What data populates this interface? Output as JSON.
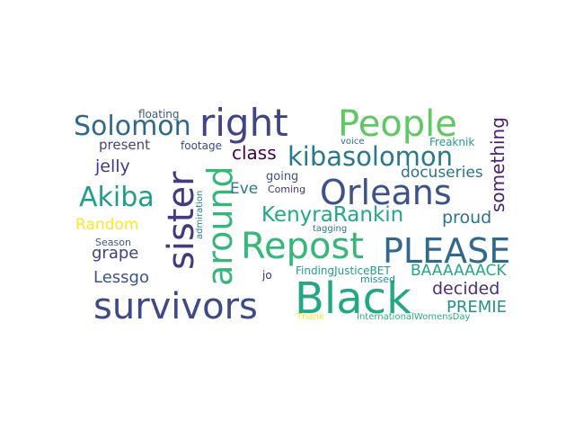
{
  "words": [
    {
      "text": "survivors",
      "color": "#3e4989"
    },
    {
      "text": "Black",
      "color": "#22a884"
    },
    {
      "text": "People",
      "color": "#5ec962"
    },
    {
      "text": "right",
      "color": "#414487"
    },
    {
      "text": "Repost",
      "color": "#35b779"
    },
    {
      "text": "PLEASE",
      "color": "#31688e"
    },
    {
      "text": "Orleans",
      "color": "#3b528b"
    },
    {
      "text": "around",
      "color": "#35b779"
    },
    {
      "text": "sister",
      "color": "#443983"
    },
    {
      "text": "Solomon",
      "color": "#31688e"
    },
    {
      "text": "kibasolomon",
      "color": "#2a788e"
    },
    {
      "text": "Akiba",
      "color": "#1f9e89"
    },
    {
      "text": "KenyraRankin",
      "color": "#22a884"
    },
    {
      "text": "something",
      "color": "#481f70"
    },
    {
      "text": "class",
      "color": "#440154"
    },
    {
      "text": "docuseries",
      "color": "#2c728e"
    },
    {
      "text": "proud",
      "color": "#2c728e"
    },
    {
      "text": "Random",
      "color": "#fde725"
    },
    {
      "text": "jelly",
      "color": "#443983"
    },
    {
      "text": "grape",
      "color": "#433e85"
    },
    {
      "text": "Lessgo",
      "color": "#3b528b"
    },
    {
      "text": "Eve",
      "color": "#2a788e"
    },
    {
      "text": "present",
      "color": "#414487"
    },
    {
      "text": "BAAAAAACK",
      "color": "#22a884"
    },
    {
      "text": "decided",
      "color": "#46327e"
    },
    {
      "text": "PREMIE",
      "color": "#21918c"
    },
    {
      "text": "floating",
      "color": "#38588c"
    },
    {
      "text": "footage",
      "color": "#3e4989"
    },
    {
      "text": "voice",
      "color": "#2d708e"
    },
    {
      "text": "Freaknik",
      "color": "#1f9e89"
    },
    {
      "text": "going",
      "color": "#3b528b"
    },
    {
      "text": "Coming",
      "color": "#46327e"
    },
    {
      "text": "admiration",
      "color": "#26828e"
    },
    {
      "text": "tagging",
      "color": "#2c728e"
    },
    {
      "text": "Season",
      "color": "#38588c"
    },
    {
      "text": "FindingJusticeBET",
      "color": "#1f9e89"
    },
    {
      "text": "jo",
      "color": "#482878"
    },
    {
      "text": "missed",
      "color": "#21918c"
    },
    {
      "text": "Thank",
      "color": "#fde725"
    },
    {
      "text": "InternationalWomensDay",
      "color": "#29af7f"
    }
  ]
}
